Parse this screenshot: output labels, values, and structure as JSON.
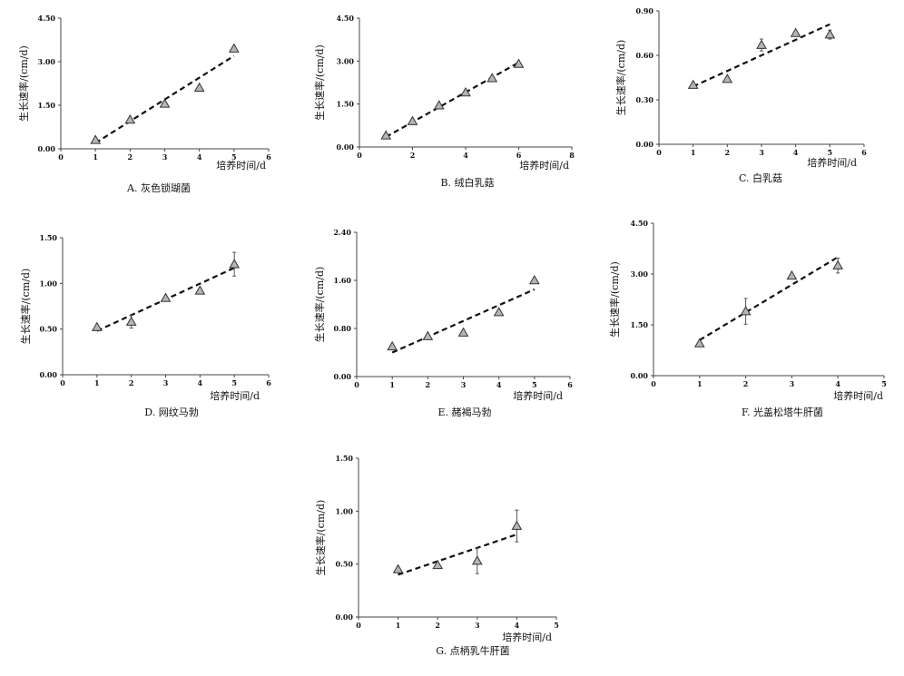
{
  "chart_data": [
    {
      "type": "scatter",
      "caption": "A. 灰色锁瑚菌",
      "xlabel": "培养时间/d",
      "ylabel": "生长速率/(cm/d)",
      "xlim": [
        0,
        6
      ],
      "xticks": [
        "0",
        "1",
        "2",
        "3",
        "4",
        "5",
        "6"
      ],
      "ylim": [
        0,
        4.5
      ],
      "yticks": [
        "0.00",
        "1.50",
        "3.00",
        "4.50"
      ],
      "x": [
        1,
        2,
        3,
        4,
        5
      ],
      "y": [
        0.3,
        1.0,
        1.55,
        2.1,
        3.45
      ],
      "err": [
        0,
        0,
        0,
        0,
        0
      ],
      "trend": [
        [
          1,
          0.2
        ],
        [
          5,
          3.2
        ]
      ]
    },
    {
      "type": "scatter",
      "caption": "B. 绒白乳菇",
      "xlabel": "培养时间/d",
      "ylabel": "生长速率/(cm/d)",
      "xlim": [
        0,
        8
      ],
      "xticks": [
        "0",
        "2",
        "4",
        "6",
        "8"
      ],
      "ylim": [
        0,
        4.5
      ],
      "yticks": [
        "0.00",
        "1.50",
        "3.00",
        "4.50"
      ],
      "x": [
        1,
        2,
        3,
        4,
        5,
        6
      ],
      "y": [
        0.4,
        0.9,
        1.45,
        1.9,
        2.4,
        2.9
      ],
      "err": [
        0,
        0,
        0,
        0,
        0,
        0
      ],
      "trend": [
        [
          1,
          0.35
        ],
        [
          6,
          2.95
        ]
      ]
    },
    {
      "type": "scatter",
      "caption": "C. 白乳菇",
      "xlabel": "培养时间/d",
      "ylabel": "生长速率/(cm/d)",
      "xlim": [
        0,
        6
      ],
      "xticks": [
        "0",
        "1",
        "2",
        "3",
        "4",
        "5",
        "6"
      ],
      "ylim": [
        0,
        0.9
      ],
      "yticks": [
        "0.00",
        "0.30",
        "0.60",
        "0.90"
      ],
      "x": [
        1,
        2,
        3,
        4,
        5
      ],
      "y": [
        0.4,
        0.44,
        0.67,
        0.75,
        0.74
      ],
      "err": [
        0,
        0,
        0.04,
        0,
        0.03
      ],
      "trend": [
        [
          1,
          0.39
        ],
        [
          5,
          0.81
        ]
      ]
    },
    {
      "type": "scatter",
      "caption": "D. 网纹马勃",
      "xlabel": "培养时间/d",
      "ylabel": "生长速率/(cm/d)",
      "xlim": [
        0,
        6
      ],
      "xticks": [
        "0",
        "1",
        "2",
        "3",
        "4",
        "5",
        "6"
      ],
      "ylim": [
        0,
        1.5
      ],
      "yticks": [
        "0.00",
        "0.50",
        "1.00",
        "1.50"
      ],
      "x": [
        1,
        2,
        3,
        4,
        5
      ],
      "y": [
        0.52,
        0.58,
        0.84,
        0.92,
        1.21
      ],
      "err": [
        0,
        0.07,
        0,
        0,
        0.13
      ],
      "trend": [
        [
          1,
          0.48
        ],
        [
          5,
          1.17
        ]
      ]
    },
    {
      "type": "scatter",
      "caption": "E. 赭褐马勃",
      "xlabel": "培养时间/d",
      "ylabel": "生长速率/(cm/d)",
      "xlim": [
        0,
        6
      ],
      "xticks": [
        "0",
        "1",
        "2",
        "3",
        "4",
        "5",
        "6"
      ],
      "ylim": [
        0,
        2.4
      ],
      "yticks": [
        "0.00",
        "0.80",
        "1.60",
        "2.40"
      ],
      "x": [
        1,
        2,
        3,
        4,
        5
      ],
      "y": [
        0.5,
        0.67,
        0.73,
        1.07,
        1.6
      ],
      "err": [
        0,
        0,
        0,
        0,
        0
      ],
      "trend": [
        [
          1,
          0.4
        ],
        [
          5,
          1.45
        ]
      ]
    },
    {
      "type": "scatter",
      "caption": "F. 光盖松塔牛肝菌",
      "xlabel": "培养时间/d",
      "ylabel": "生长速率/(cm/d)",
      "xlim": [
        0,
        5
      ],
      "xticks": [
        "0",
        "1",
        "2",
        "3",
        "4",
        "5"
      ],
      "ylim": [
        0,
        4.5
      ],
      "yticks": [
        "0.00",
        "1.50",
        "3.00",
        "4.50"
      ],
      "x": [
        1,
        2,
        3,
        4
      ],
      "y": [
        0.95,
        1.9,
        2.95,
        3.25
      ],
      "err": [
        0,
        0.38,
        0,
        0.22
      ],
      "trend": [
        [
          1,
          1.05
        ],
        [
          4,
          3.5
        ]
      ]
    },
    {
      "type": "scatter",
      "caption": "G. 点柄乳牛肝菌",
      "xlabel": "培养时间/d",
      "ylabel": "生长速率/(cm/d)",
      "xlim": [
        0,
        5
      ],
      "xticks": [
        "0",
        "1",
        "2",
        "3",
        "4",
        "5"
      ],
      "ylim": [
        0,
        1.5
      ],
      "yticks": [
        "0.00",
        "0.50",
        "1.00",
        "1.50"
      ],
      "x": [
        1,
        2,
        3,
        4
      ],
      "y": [
        0.45,
        0.49,
        0.53,
        0.86
      ],
      "err": [
        0,
        0,
        0.12,
        0.15
      ],
      "trend": [
        [
          1,
          0.4
        ],
        [
          4,
          0.78
        ]
      ]
    }
  ]
}
